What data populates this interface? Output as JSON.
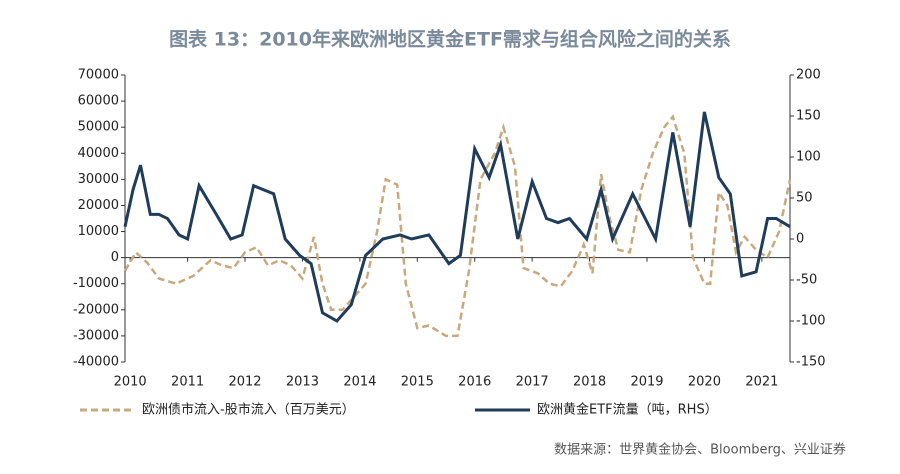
{
  "chart_data": {
    "type": "line",
    "title": "图表 13：2010年来欧洲地区黄金ETF需求与组合风险之间的关系",
    "source": "数据来源：世界黄金协会、Bloomberg、兴业证券",
    "xlim": [
      2009.91,
      2021.49
    ],
    "xticks": [
      2010,
      2011,
      2012,
      2013,
      2014,
      2015,
      2016,
      2017,
      2018,
      2019,
      2020,
      2021
    ],
    "ylim": [
      -40000,
      70000
    ],
    "yticks": [
      -40000,
      -30000,
      -20000,
      -10000,
      0,
      10000,
      20000,
      30000,
      40000,
      50000,
      60000,
      70000
    ],
    "y2lim": [
      -150,
      200
    ],
    "y2ticks": [
      -150,
      -100,
      -50,
      0,
      50,
      100,
      150,
      200
    ],
    "series": [
      {
        "name": "欧洲债市流入-股市流入（百万美元）",
        "color": "#c8a97e",
        "dash": true,
        "x": [
          2009.91,
          2010.1,
          2010.3,
          2010.5,
          2010.8,
          2011.1,
          2011.4,
          2011.6,
          2011.8,
          2012.0,
          2012.2,
          2012.4,
          2012.6,
          2012.8,
          2013.0,
          2013.2,
          2013.35,
          2013.5,
          2013.7,
          2013.9,
          2014.1,
          2014.3,
          2014.45,
          2014.65,
          2014.8,
          2015.0,
          2015.2,
          2015.5,
          2015.7,
          2015.9,
          2016.1,
          2016.35,
          2016.5,
          2016.7,
          2016.85,
          2017.1,
          2017.3,
          2017.5,
          2017.7,
          2017.9,
          2018.05,
          2018.2,
          2018.35,
          2018.5,
          2018.7,
          2018.9,
          2019.1,
          2019.3,
          2019.45,
          2019.65,
          2019.8,
          2020.0,
          2020.1,
          2020.25,
          2020.4,
          2020.55,
          2020.7,
          2020.9,
          2021.1,
          2021.3,
          2021.49
        ],
        "values": [
          -5000,
          2000,
          -2000,
          -8000,
          -10000,
          -7000,
          -1000,
          -3000,
          -4000,
          2000,
          4000,
          -3000,
          -1000,
          -3000,
          -8000,
          8000,
          -10000,
          -20000,
          -20000,
          -15000,
          -10000,
          10000,
          30000,
          28000,
          -10000,
          -27000,
          -26000,
          -30000,
          -30000,
          -5000,
          30000,
          40000,
          50000,
          35000,
          -4000,
          -6000,
          -10000,
          -11000,
          -5000,
          5000,
          -6000,
          32000,
          15000,
          3000,
          2000,
          26000,
          40000,
          50000,
          54000,
          40000,
          0,
          -10000,
          -10000,
          25000,
          20000,
          2000,
          8000,
          3000,
          0,
          10000,
          30000
        ]
      },
      {
        "name": "欧洲黄金ETF流量（吨，RHS）",
        "color": "#1f3c5a",
        "axis": "y2",
        "x": [
          2009.91,
          2010.05,
          2010.18,
          2010.35,
          2010.5,
          2010.65,
          2010.85,
          2011.0,
          2011.2,
          2011.5,
          2011.75,
          2011.95,
          2012.15,
          2012.5,
          2012.7,
          2012.95,
          2013.15,
          2013.35,
          2013.6,
          2013.85,
          2014.1,
          2014.4,
          2014.7,
          2014.9,
          2015.2,
          2015.55,
          2015.75,
          2016.0,
          2016.25,
          2016.45,
          2016.75,
          2017.0,
          2017.25,
          2017.45,
          2017.65,
          2017.95,
          2018.2,
          2018.4,
          2018.75,
          2019.15,
          2019.45,
          2019.75,
          2020.0,
          2020.25,
          2020.45,
          2020.65,
          2020.9,
          2021.1,
          2021.25,
          2021.49
        ],
        "values": [
          15,
          60,
          90,
          30,
          30,
          25,
          5,
          0,
          65,
          30,
          0,
          5,
          65,
          55,
          0,
          -20,
          -30,
          -90,
          -100,
          -80,
          -20,
          0,
          5,
          0,
          5,
          -30,
          -20,
          110,
          75,
          115,
          0,
          70,
          25,
          20,
          25,
          0,
          60,
          0,
          55,
          0,
          130,
          15,
          155,
          75,
          55,
          -45,
          -40,
          25,
          25,
          15
        ]
      }
    ]
  }
}
